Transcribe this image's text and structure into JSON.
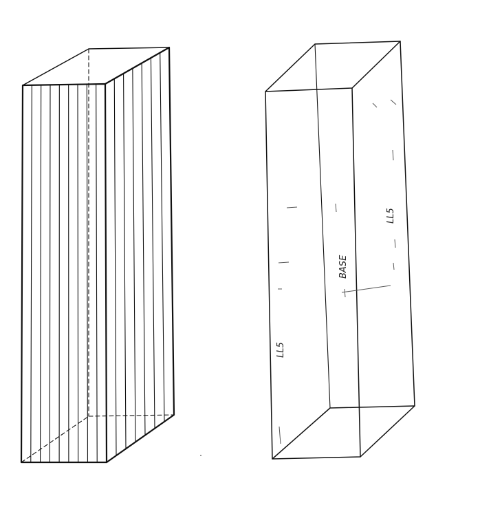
{
  "figure": {
    "left_box": {
      "label": "",
      "stripe_count": 14
    },
    "right_box": {
      "annotations": [
        {
          "name": "annotation-front-left",
          "text": "LL5"
        },
        {
          "name": "annotation-middle",
          "text": "BASE"
        },
        {
          "name": "annotation-right",
          "text": "LL5"
        }
      ]
    }
  }
}
